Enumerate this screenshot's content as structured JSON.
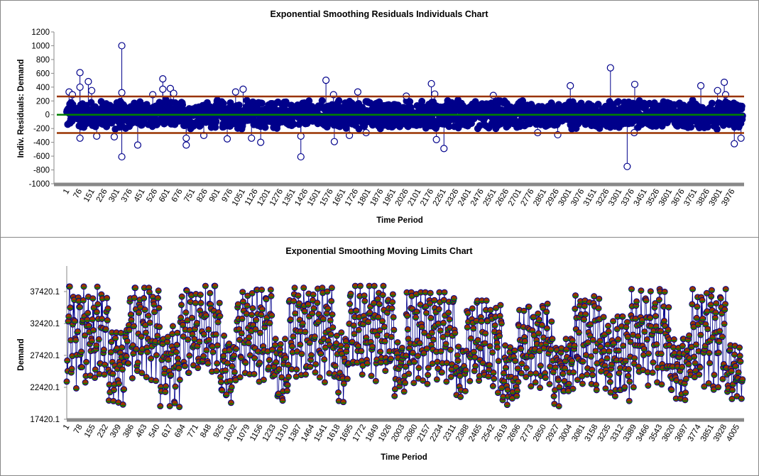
{
  "chart_data": [
    {
      "type": "line",
      "title": "Exponential Smoothing Residuals Individuals Chart",
      "xlabel": "Time Period",
      "ylabel": "Indiv. Residuals: Demand",
      "ylim": [
        -1000,
        1200
      ],
      "yticks": [
        "1200",
        "1000",
        "800",
        "600",
        "400",
        "200",
        "0",
        "-200",
        "-400",
        "-600",
        "-800",
        "-1000"
      ],
      "xticks": [
        "1",
        "76",
        "151",
        "226",
        "301",
        "376",
        "451",
        "526",
        "601",
        "676",
        "751",
        "826",
        "901",
        "976",
        "1051",
        "1126",
        "1201",
        "1276",
        "1351",
        "1426",
        "1501",
        "1576",
        "1651",
        "1726",
        "1801",
        "1876",
        "1951",
        "2026",
        "2101",
        "2176",
        "2251",
        "2326",
        "2401",
        "2476",
        "2551",
        "2626",
        "2701",
        "2776",
        "2851",
        "2926",
        "3001",
        "3076",
        "3151",
        "3226",
        "3301",
        "3376",
        "3451",
        "3526",
        "3601",
        "3676",
        "3751",
        "3826",
        "3901",
        "3976"
      ],
      "n_points": 4040,
      "typical_band": [
        -230,
        230
      ],
      "control_limits": {
        "ucl": 265,
        "center": 0,
        "lcl": -265
      },
      "colors": {
        "points": "#00008B",
        "limits": "#993300",
        "center": "#008000",
        "axis": "#888888"
      },
      "grid": false,
      "legend": "none",
      "outliers": [
        [
          15,
          330
        ],
        [
          35,
          290
        ],
        [
          80,
          610
        ],
        [
          80,
          400
        ],
        [
          80,
          -340
        ],
        [
          130,
          480
        ],
        [
          150,
          350
        ],
        [
          180,
          -310
        ],
        [
          285,
          -320
        ],
        [
          330,
          1000
        ],
        [
          330,
          320
        ],
        [
          330,
          -610
        ],
        [
          425,
          -440
        ],
        [
          515,
          290
        ],
        [
          575,
          520
        ],
        [
          575,
          370
        ],
        [
          620,
          380
        ],
        [
          640,
          310
        ],
        [
          715,
          -440
        ],
        [
          715,
          -340
        ],
        [
          820,
          -300
        ],
        [
          960,
          -350
        ],
        [
          1010,
          330
        ],
        [
          1055,
          370
        ],
        [
          1105,
          -340
        ],
        [
          1160,
          -400
        ],
        [
          1400,
          -610
        ],
        [
          1400,
          -310
        ],
        [
          1550,
          500
        ],
        [
          1600,
          -390
        ],
        [
          1595,
          290
        ],
        [
          1690,
          -300
        ],
        [
          1740,
          330
        ],
        [
          1790,
          -260
        ],
        [
          2030,
          270
        ],
        [
          2180,
          450
        ],
        [
          2200,
          300
        ],
        [
          2210,
          -360
        ],
        [
          2255,
          -490
        ],
        [
          2550,
          280
        ],
        [
          2815,
          -260
        ],
        [
          2935,
          -290
        ],
        [
          3010,
          420
        ],
        [
          3250,
          680
        ],
        [
          3350,
          -750
        ],
        [
          3395,
          440
        ],
        [
          3392,
          -260
        ],
        [
          3790,
          420
        ],
        [
          3890,
          350
        ],
        [
          3930,
          470
        ],
        [
          3938,
          290
        ],
        [
          3990,
          -420
        ],
        [
          4030,
          -340
        ]
      ]
    },
    {
      "type": "line",
      "title": "Exponential Smoothing Moving Limits Chart",
      "xlabel": "Time Period",
      "ylabel": "Demand",
      "ylim": [
        17420.1,
        40420.1
      ],
      "yticks": [
        "37420.1",
        "32420.1",
        "27420.1",
        "22420.1",
        "17420.1"
      ],
      "xticks": [
        "1",
        "78",
        "155",
        "232",
        "309",
        "386",
        "463",
        "540",
        "617",
        "694",
        "771",
        "848",
        "925",
        "1002",
        "1079",
        "1156",
        "1233",
        "1310",
        "1387",
        "1464",
        "1541",
        "1618",
        "1695",
        "1772",
        "1849",
        "1926",
        "2003",
        "2080",
        "2157",
        "2234",
        "2311",
        "2388",
        "2465",
        "2542",
        "2619",
        "2696",
        "2773",
        "2850",
        "2927",
        "3004",
        "3081",
        "3158",
        "3235",
        "3312",
        "3389",
        "3466",
        "3543",
        "3620",
        "3697",
        "3774",
        "3851",
        "3928",
        "4005"
      ],
      "n_points": 4040,
      "colors": {
        "points": "#00008B",
        "upper_limit": "#993300",
        "lower_limit": "#008000",
        "axis": "#888888"
      },
      "grid": false,
      "legend": "none",
      "segments": [
        [
          1,
          250,
          21800,
          38200
        ],
        [
          250,
          360,
          19400,
          31000
        ],
        [
          360,
          560,
          23000,
          38000
        ],
        [
          560,
          680,
          19000,
          32000
        ],
        [
          680,
          920,
          23000,
          38300
        ],
        [
          920,
          1010,
          19200,
          30500
        ],
        [
          1010,
          1240,
          22800,
          37700
        ],
        [
          1240,
          1330,
          19300,
          30000
        ],
        [
          1330,
          1600,
          22800,
          38000
        ],
        [
          1600,
          1680,
          19700,
          31000
        ],
        [
          1680,
          1960,
          22800,
          38300
        ],
        [
          1960,
          2030,
          20500,
          29500
        ],
        [
          2030,
          2330,
          22500,
          37300
        ],
        [
          2330,
          2380,
          19300,
          29000
        ],
        [
          2380,
          2600,
          21000,
          36000
        ],
        [
          2600,
          2700,
          18900,
          29000
        ],
        [
          2700,
          2900,
          21300,
          35500
        ],
        [
          2900,
          3020,
          19100,
          30000
        ],
        [
          3020,
          3200,
          21500,
          36800
        ],
        [
          3200,
          3370,
          19500,
          33500
        ],
        [
          3370,
          3600,
          22000,
          37800
        ],
        [
          3600,
          3720,
          19500,
          30000
        ],
        [
          3720,
          3940,
          21500,
          37800
        ],
        [
          3940,
          4040,
          19800,
          29000
        ]
      ]
    }
  ]
}
